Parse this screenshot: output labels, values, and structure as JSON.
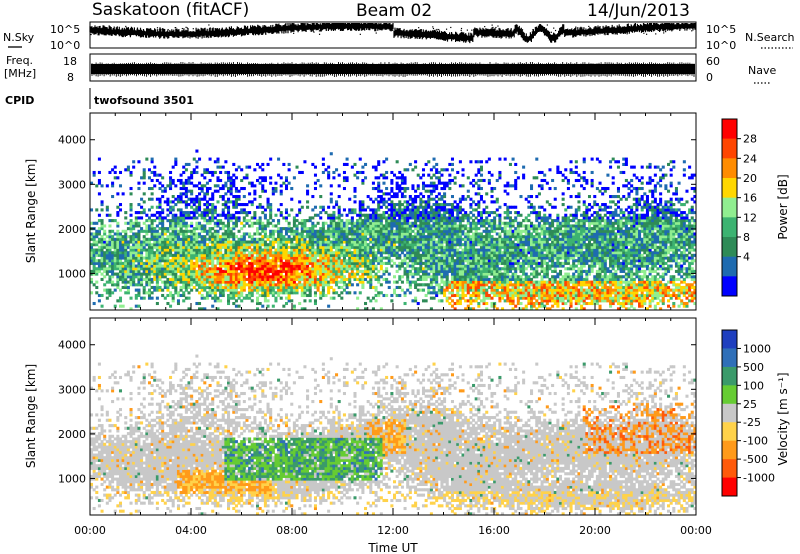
{
  "header": {
    "station": "Saskatoon (fitACF)",
    "beam": "Beam 02",
    "date": "14/Jun/2013"
  },
  "strips": {
    "nsky_label": "N.Sky",
    "nsky_ticks": [
      "10^5",
      "10^0"
    ],
    "nsearch_label": "N.Search",
    "nsearch_ticks": [
      "10^5",
      "10^0"
    ],
    "freq_label_line1": "Freq.",
    "freq_label_line2": "[MHz]",
    "freq_ticks": [
      "18",
      "8"
    ],
    "nave_label": "Nave",
    "nave_ticks": [
      "60",
      "0"
    ],
    "cpid_label": "CPID",
    "cpid_value": "twofsound 3501"
  },
  "chart_data": [
    {
      "type": "heatmap",
      "panel": "power",
      "ylabel": "Slant Range [km]",
      "y_ticks": [
        1000,
        2000,
        3000,
        4000
      ],
      "ylim": [
        180,
        4600
      ],
      "x_ticks": [
        "00:00",
        "04:00",
        "08:00",
        "12:00",
        "16:00",
        "20:00",
        "00:00"
      ],
      "xlim_hours": [
        0,
        24
      ],
      "colorbar": {
        "label": "Power [dB]",
        "ticks": [
          "28",
          "24",
          "20",
          "16",
          "12",
          "8",
          "4"
        ],
        "colors": [
          "#ff0000",
          "#ff4500",
          "#ff8c00",
          "#ffd700",
          "#90ee90",
          "#3cb371",
          "#2e8b57",
          "#1e6bb0",
          "#0000ff"
        ]
      }
    },
    {
      "type": "heatmap",
      "panel": "velocity",
      "ylabel": "Slant Range [km]",
      "y_ticks": [
        1000,
        2000,
        3000,
        4000
      ],
      "ylim": [
        180,
        4600
      ],
      "x_ticks": [
        "00:00",
        "04:00",
        "08:00",
        "12:00",
        "16:00",
        "20:00",
        "00:00"
      ],
      "xlabel": "Time UT",
      "xlim_hours": [
        0,
        24
      ],
      "colorbar": {
        "label": "Velocity [m s⁻¹]",
        "ticks": [
          "1000",
          "500",
          "100",
          "25",
          "-25",
          "-100",
          "-500",
          "-1000"
        ],
        "colors": [
          "#1f3fbf",
          "#2f6fb8",
          "#3a9a6a",
          "#66cc33",
          "#c8c8c8",
          "#ffd24a",
          "#ff9a1a",
          "#ff5a0a",
          "#ff0000"
        ]
      }
    }
  ]
}
